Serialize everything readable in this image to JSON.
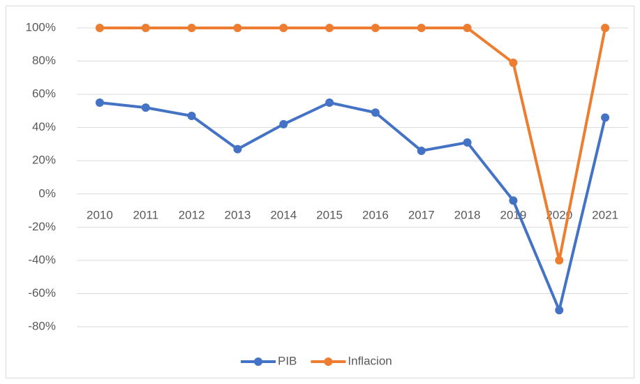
{
  "chart_data": {
    "type": "line",
    "categories": [
      "2010",
      "2011",
      "2012",
      "2013",
      "2014",
      "2015",
      "2016",
      "2017",
      "2018",
      "2019",
      "2020",
      "2021"
    ],
    "series": [
      {
        "name": "PIB",
        "color": "#4472c4",
        "values": [
          55,
          52,
          47,
          27,
          42,
          55,
          49,
          26,
          31,
          -4,
          -70,
          46
        ]
      },
      {
        "name": "Inflacion",
        "color": "#ed7d31",
        "values": [
          100,
          100,
          100,
          100,
          100,
          100,
          100,
          100,
          100,
          79,
          -40,
          100
        ]
      }
    ],
    "ylim": [
      -80,
      100
    ],
    "yticks": [
      {
        "value": -80,
        "label": "-80%"
      },
      {
        "value": -60,
        "label": "-60%"
      },
      {
        "value": -40,
        "label": "-40%"
      },
      {
        "value": -20,
        "label": "-20%"
      },
      {
        "value": 0,
        "label": "0%"
      },
      {
        "value": 20,
        "label": "20%"
      },
      {
        "value": 40,
        "label": "40%"
      },
      {
        "value": 60,
        "label": "60%"
      },
      {
        "value": 80,
        "label": "80%"
      },
      {
        "value": 100,
        "label": "100%"
      }
    ],
    "grid": true,
    "legend": "bottom"
  }
}
